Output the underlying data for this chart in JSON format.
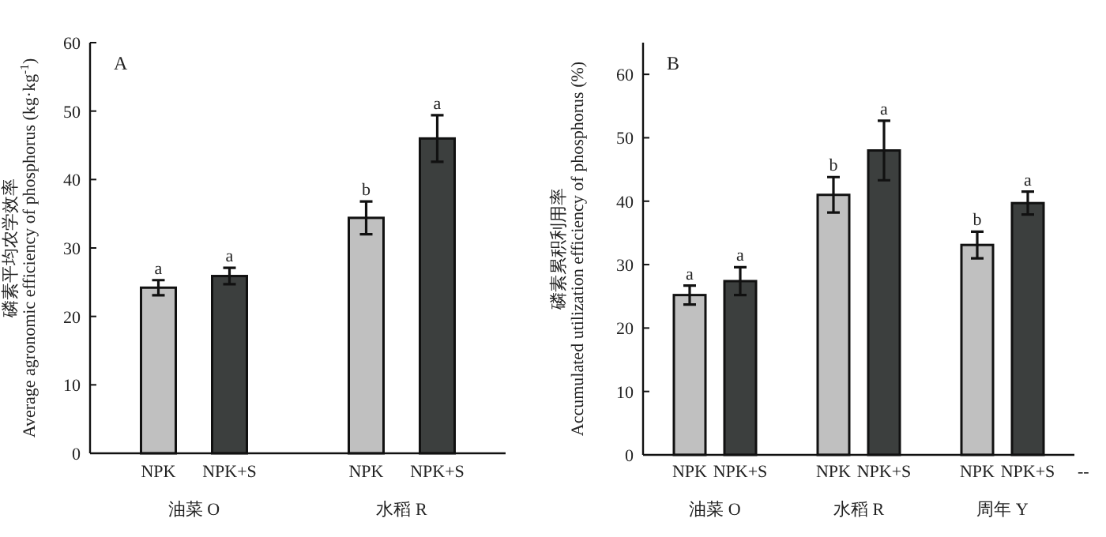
{
  "chart_data": [
    {
      "type": "bar",
      "title": "A",
      "ylabel": "磷素平均农学效率\nAverage agronomic efficiency of phosphorus (kg·kg$^{-1}$)",
      "categories": [
        "油菜 O",
        "水稻 R"
      ],
      "series": [
        {
          "name": "NPK",
          "color": "#c0c0c0",
          "values": [
            24.2,
            34.4
          ],
          "errors": [
            1.1,
            2.4
          ],
          "value_labels": [
            "a",
            "b"
          ]
        },
        {
          "name": "NPK+S",
          "color": "#3c3f3e",
          "values": [
            25.9,
            46.0
          ],
          "errors": [
            1.2,
            3.4
          ],
          "value_labels": [
            "a",
            "a"
          ]
        }
      ],
      "ylim": [
        0,
        60
      ],
      "yticks": [
        0,
        10,
        20,
        30,
        40,
        50,
        60
      ]
    },
    {
      "type": "bar",
      "title": "B",
      "ylabel": "磷素累积利用率\nAccumulated utilization efficiency of phosphorus (%)",
      "categories": [
        "油菜 O",
        "水稻 R",
        "周年 Y"
      ],
      "series": [
        {
          "name": "NPK",
          "color": "#c0c0c0",
          "values": [
            25.2,
            41.0,
            33.1
          ],
          "errors": [
            1.5,
            2.8,
            2.1
          ],
          "value_labels": [
            "a",
            "b",
            "b"
          ]
        },
        {
          "name": "NPK+S",
          "color": "#3c3f3e",
          "values": [
            27.4,
            48.0,
            39.7
          ],
          "errors": [
            2.2,
            4.7,
            1.8
          ],
          "value_labels": [
            "a",
            "a",
            "a"
          ]
        }
      ],
      "ylim": [
        0,
        65
      ],
      "yticks": [
        0,
        10,
        20,
        30,
        40,
        50,
        60
      ],
      "annotations": [
        "--"
      ]
    }
  ]
}
